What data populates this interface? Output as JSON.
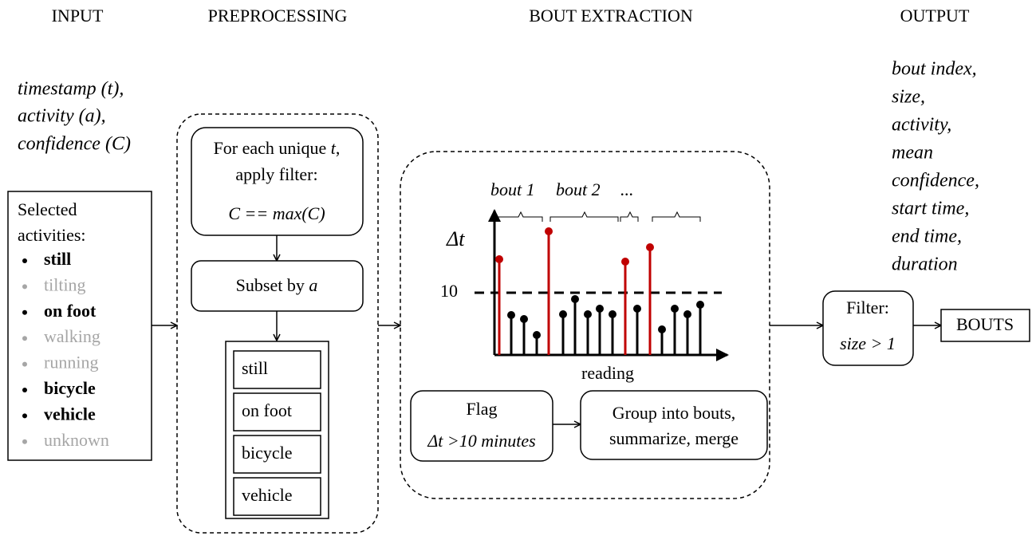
{
  "headers": [
    "INPUT",
    "PREPROCESSING",
    "BOUT EXTRACTION",
    "OUTPUT"
  ],
  "input": {
    "fields": [
      "timestamp (t),",
      "activity (a),",
      "confidence (C)"
    ],
    "box_title": [
      "Selected",
      "activities:"
    ],
    "activities": [
      {
        "name": "still",
        "selected": true
      },
      {
        "name": "tilting",
        "selected": false
      },
      {
        "name": "on foot",
        "selected": true
      },
      {
        "name": "walking",
        "selected": false
      },
      {
        "name": "running",
        "selected": false
      },
      {
        "name": "bicycle",
        "selected": true
      },
      {
        "name": "vehicle",
        "selected": true
      },
      {
        "name": "unknown",
        "selected": false
      }
    ]
  },
  "preprocessing": {
    "filter": {
      "line1": "For each unique ",
      "line1_var": "t",
      "line1_end": ",",
      "line2": "apply filter:",
      "condition": "C == max(C)"
    },
    "subset": {
      "text": "Subset by ",
      "var": "a"
    },
    "groups": [
      "still",
      "on foot",
      "bicycle",
      "vehicle"
    ]
  },
  "bout_extraction": {
    "bout_labels": [
      "bout 1",
      "bout 2",
      "..."
    ],
    "y_label": "Δt",
    "threshold": 10,
    "x_label": "reading",
    "flag": {
      "title": "Flag",
      "condition": "Δt >10 minutes"
    },
    "group": [
      "Group into bouts,",
      "summarize, merge"
    ]
  },
  "output": {
    "fields": [
      "bout index,",
      "size,",
      "activity,",
      "mean",
      "confidence,",
      "start time,",
      "end time,",
      "duration"
    ],
    "filter": {
      "title": "Filter:",
      "condition": "size > 1"
    },
    "result": "BOUTS"
  }
}
